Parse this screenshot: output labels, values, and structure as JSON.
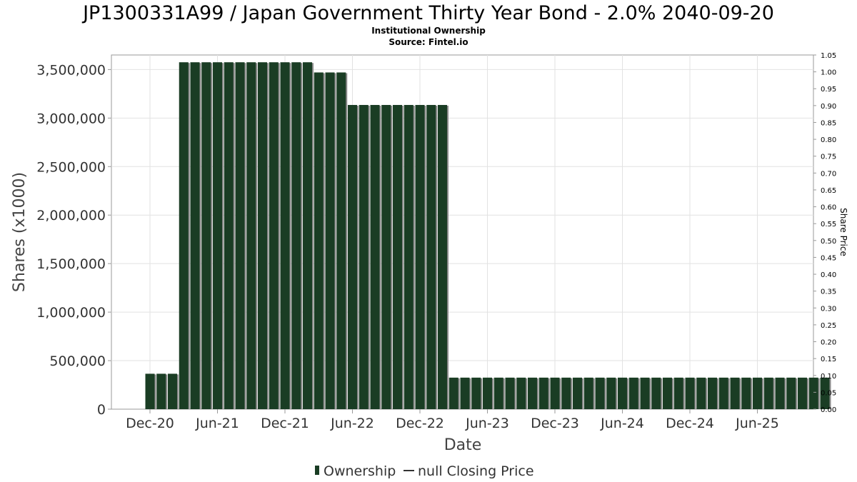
{
  "chart_data": {
    "type": "bar",
    "title": "JP1300331A99 / Japan Government Thirty Year Bond - 2.0% 2040-09-20",
    "subtitle_lines": [
      "Institutional Ownership",
      "Source: Fintel.io"
    ],
    "xlabel": "Date",
    "ylabel": "Shares (x1000)",
    "y2label": "Share Price",
    "ylim": [
      0,
      3650000
    ],
    "y2lim": [
      0,
      1.05
    ],
    "yticks": [
      "0",
      "500,000",
      "1,000,000",
      "1,500,000",
      "2,000,000",
      "2,500,000",
      "3,000,000",
      "3,500,000"
    ],
    "ytick_values": [
      0,
      500000,
      1000000,
      1500000,
      2000000,
      2500000,
      3000000,
      3500000
    ],
    "y2ticks": [
      "0.00",
      "0.05",
      "0.10",
      "0.15",
      "0.20",
      "0.25",
      "0.30",
      "0.35",
      "0.40",
      "0.45",
      "0.50",
      "0.55",
      "0.60",
      "0.65",
      "0.70",
      "0.75",
      "0.80",
      "0.85",
      "0.90",
      "0.95",
      "1.00",
      "1.05"
    ],
    "xticks": [
      "Dec-20",
      "Jun-21",
      "Dec-21",
      "Jun-22",
      "Dec-22",
      "Jun-23",
      "Dec-23",
      "Jun-24",
      "Dec-24",
      "Jun-25"
    ],
    "grid": true,
    "legend_position": "bottom-center",
    "legend": [
      "Ownership",
      "null Closing Price"
    ],
    "series": [
      {
        "name": "Ownership",
        "color": "#1a3d24",
        "values": [
          365000,
          365000,
          365000,
          3575000,
          3575000,
          3575000,
          3575000,
          3575000,
          3575000,
          3575000,
          3575000,
          3575000,
          3575000,
          3575000,
          3575000,
          3470000,
          3470000,
          3470000,
          3135000,
          3135000,
          3135000,
          3135000,
          3135000,
          3135000,
          3135000,
          3135000,
          3135000,
          325000,
          325000,
          325000,
          325000,
          325000,
          325000,
          325000,
          325000,
          325000,
          325000,
          325000,
          325000,
          325000,
          325000,
          325000,
          325000,
          325000,
          325000,
          325000,
          325000,
          325000,
          325000,
          325000,
          325000,
          325000,
          325000,
          325000,
          325000,
          325000,
          325000,
          325000,
          325000,
          325000,
          325000
        ]
      }
    ]
  }
}
